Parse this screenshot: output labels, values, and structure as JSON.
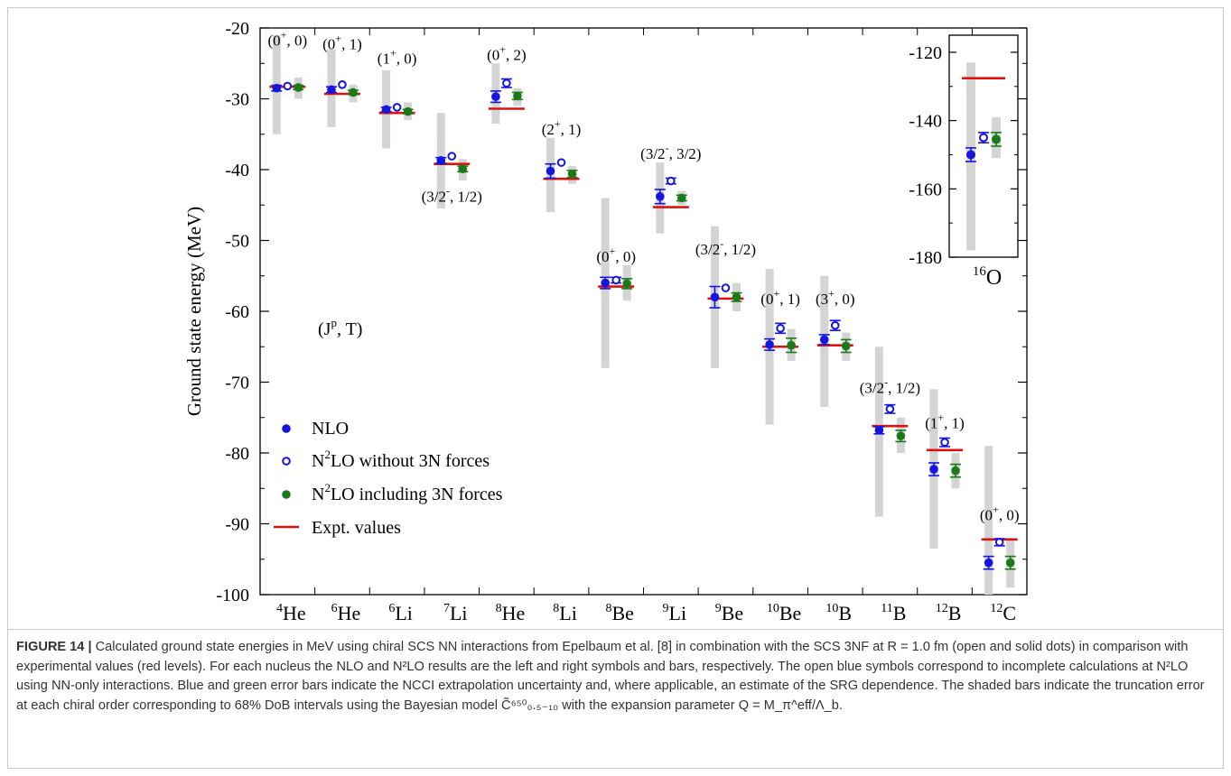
{
  "figure": {
    "label": "FIGURE 14 |",
    "caption": "Calculated ground state energies in MeV using chiral SCS NN interactions from Epelbaum et al. [8] in combination with the SCS 3NF at R = 1.0 fm (open and solid dots) in comparison with experimental values (red levels). For each nucleus the NLO and N²LO results are the left and right symbols and bars, respectively. The open blue symbols correspond to incomplete calculations at N²LO using NN-only interactions. Blue and green error bars indicate the NCCI extrapolation uncertainty and, where applicable, an estimate of the SRG dependence. The shaded bars indicate the truncation error at each chiral order corresponding to 68% DoB intervals using the Bayesian model C̃⁶⁵⁰₀.₅₋₁₀ with the expansion parameter Q = M_π^eff/Λ_b."
  },
  "colors": {
    "nlo": "#1515e0",
    "n2lo_no3n": "#1515e0",
    "n2lo_3n": "#1a7a1a",
    "expt": "#e01010",
    "band": "#d4d4d4"
  },
  "chart_data": [
    {
      "type": "scatter",
      "ylabel": "Ground state energy (MeV)",
      "xlabel": "",
      "ylim": [
        -100,
        -20
      ],
      "yticks": [
        -20,
        -30,
        -40,
        -50,
        -60,
        -70,
        -80,
        -90,
        -100
      ],
      "ytick_labels": [
        "-20",
        "-30",
        "-40",
        "-50",
        "-60",
        "-70",
        "-80",
        "-90",
        "-100"
      ],
      "categories": [
        {
          "A": "4",
          "el": "He",
          "jp": "(0",
          "par": "+",
          "t": ", 0)",
          "label_y": -22.5
        },
        {
          "A": "6",
          "el": "He",
          "jp": "(0",
          "par": "+",
          "t": ", 1)",
          "label_y": -23
        },
        {
          "A": "6",
          "el": "Li",
          "jp": "(1",
          "par": "+",
          "t": ", 0)",
          "label_y": -25
        },
        {
          "A": "7",
          "el": "Li",
          "jp": "(3/2",
          "par": "-",
          "t": ", 1/2)",
          "label_y": -44.5
        },
        {
          "A": "8",
          "el": "He",
          "jp": "(0",
          "par": "+",
          "t": ", 2)",
          "label_y": -24.5
        },
        {
          "A": "8",
          "el": "Li",
          "jp": "(2",
          "par": "+",
          "t": ", 1)",
          "label_y": -35
        },
        {
          "A": "8",
          "el": "Be",
          "jp": "(0",
          "par": "+",
          "t": ", 0)",
          "label_y": -53
        },
        {
          "A": "9",
          "el": "Li",
          "jp": "(3/2",
          "par": "-",
          "t": ", 3/2)",
          "label_y": -38.5
        },
        {
          "A": "9",
          "el": "Be",
          "jp": "(3/2",
          "par": "-",
          "t": ", 1/2)",
          "label_y": -52
        },
        {
          "A": "10",
          "el": "Be",
          "jp": "(0",
          "par": "+",
          "t": ", 1)",
          "label_y": -59
        },
        {
          "A": "10",
          "el": "B",
          "jp": "(3",
          "par": "+",
          "t": ", 0)",
          "label_y": -59
        },
        {
          "A": "11",
          "el": "B",
          "jp": "(3/2",
          "par": "-",
          "t": ", 1/2)",
          "label_y": -71.5
        },
        {
          "A": "12",
          "el": "B",
          "jp": "(1",
          "par": "+",
          "t": ", 1)",
          "label_y": -76.5
        },
        {
          "A": "12",
          "el": "C",
          "jp": "(0",
          "par": "+",
          "t": ", 0)",
          "label_y": -89.5
        }
      ],
      "series": [
        {
          "name": "NLO",
          "kind": "solid",
          "color_key": "nlo",
          "values": [
            -28.5,
            -28.7,
            -31.5,
            -38.7,
            -29.7,
            -40.2,
            -56.0,
            -43.8,
            -58.0,
            -64.7,
            -64.0,
            -76.8,
            -82.3,
            -95.5
          ],
          "err": [
            0.4,
            0.4,
            0.3,
            0.4,
            0.8,
            1.0,
            0.8,
            1.0,
            1.5,
            0.8,
            0.7,
            0.5,
            0.9,
            0.9
          ],
          "band": [
            [
              -35,
              -21
            ],
            [
              -34,
              -23
            ],
            [
              -37,
              -26
            ],
            [
              -45.5,
              -32
            ],
            [
              -33.5,
              -25
            ],
            [
              -46,
              -35.5
            ],
            [
              -68,
              -44
            ],
            [
              -49,
              -39
            ],
            [
              -68,
              -48
            ],
            [
              -76,
              -54
            ],
            [
              -73.5,
              -55
            ],
            [
              -89,
              -65
            ],
            [
              -93.5,
              -71
            ],
            [
              -100,
              -79
            ]
          ]
        },
        {
          "name": "N²LO without 3N forces",
          "kind": "open",
          "color_key": "n2lo_no3n",
          "values": [
            -28.2,
            -28.0,
            -31.2,
            -38.1,
            -27.8,
            -39.0,
            -55.6,
            -41.6,
            -56.7,
            -62.4,
            -62.0,
            -73.8,
            -78.5,
            -92.6
          ],
          "err": [
            0,
            0,
            0,
            0,
            0.6,
            0,
            0.4,
            0.4,
            0,
            0.7,
            0.7,
            0.6,
            0.6,
            0.5
          ]
        },
        {
          "name": "N²LO including 3N forces",
          "kind": "solid",
          "color_key": "n2lo_3n",
          "values": [
            -28.4,
            -29.1,
            -31.8,
            -39.9,
            -29.6,
            -40.6,
            -56.1,
            -44.0,
            -58.0,
            -64.8,
            -64.9,
            -77.6,
            -82.5,
            -95.5
          ],
          "err": [
            0.3,
            0.3,
            0.3,
            0.4,
            0.5,
            0.5,
            0.7,
            0.4,
            0.6,
            1.0,
            0.9,
            0.8,
            0.9,
            0.9
          ],
          "band": [
            [
              -30,
              -27
            ],
            [
              -30.5,
              -28
            ],
            [
              -33,
              -30.5
            ],
            [
              -41.5,
              -38.5
            ],
            [
              -31,
              -28.5
            ],
            [
              -42,
              -39.5
            ],
            [
              -58.5,
              -53.5
            ],
            [
              -45,
              -43
            ],
            [
              -60,
              -56
            ],
            [
              -67,
              -62.5
            ],
            [
              -67,
              -63
            ],
            [
              -80,
              -75
            ],
            [
              -85,
              -80
            ],
            [
              -99,
              -92
            ]
          ]
        },
        {
          "name": "Expt. values",
          "kind": "line",
          "color_key": "expt",
          "values": [
            -28.3,
            -29.3,
            -32.0,
            -39.2,
            -31.4,
            -41.3,
            -56.5,
            -45.3,
            -58.2,
            -65.0,
            -64.8,
            -76.2,
            -79.6,
            -92.2
          ]
        }
      ],
      "legend": {
        "placement": "bottom-left",
        "header_prefix": "(J",
        "header_sup": "p",
        "header_suffix": ", T)",
        "entries": [
          "NLO",
          "N",
          "2",
          "LO without 3N forces",
          "N",
          "2",
          "LO including 3N forces",
          "Expt. values"
        ]
      }
    },
    {
      "type": "scatter",
      "inset": true,
      "ylim": [
        -180,
        -115
      ],
      "yticks": [
        -120,
        -140,
        -160,
        -180
      ],
      "ytick_labels": [
        "-120",
        "-140",
        "-160",
        "-180"
      ],
      "x_label_A": "16",
      "x_label_el": "O",
      "nlo": {
        "value": -150.0,
        "err": 2.0,
        "band": [
          -178,
          -123
        ]
      },
      "n2lo_no3n": {
        "value": -145.0,
        "err": 1.5
      },
      "n2lo_3n": {
        "value": -145.5,
        "err": 2.0,
        "band": [
          -151,
          -139
        ]
      },
      "expt": {
        "value": -127.6
      }
    }
  ]
}
